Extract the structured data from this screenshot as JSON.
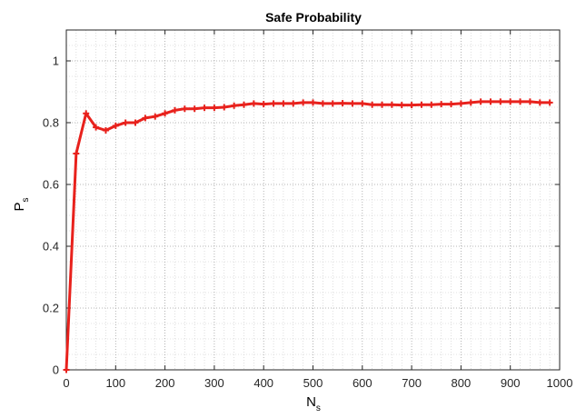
{
  "chart_data": {
    "type": "line",
    "title": "Safe Probability",
    "xlabel": {
      "main": "N",
      "sub": "s"
    },
    "ylabel": {
      "main": "P",
      "sub": "s"
    },
    "xlim": [
      0,
      1000
    ],
    "ylim": [
      0,
      1.1
    ],
    "xticks": [
      "0",
      "100",
      "200",
      "300",
      "400",
      "500",
      "600",
      "700",
      "800",
      "900",
      "1000"
    ],
    "yticks": [
      "0",
      "0.2",
      "0.4",
      "0.6",
      "0.8",
      "1"
    ],
    "grid": "major and minor, dotted",
    "series": [
      {
        "color": "#e8211c",
        "marker": "plus",
        "x": [
          0,
          20,
          40,
          60,
          80,
          100,
          120,
          140,
          160,
          180,
          200,
          220,
          240,
          260,
          280,
          300,
          320,
          340,
          360,
          380,
          400,
          420,
          440,
          460,
          480,
          500,
          520,
          540,
          560,
          580,
          600,
          620,
          640,
          660,
          680,
          700,
          720,
          740,
          760,
          780,
          800,
          820,
          840,
          860,
          880,
          900,
          920,
          940,
          960,
          980
        ],
        "y": [
          0,
          0.7,
          0.83,
          0.785,
          0.775,
          0.79,
          0.8,
          0.8,
          0.815,
          0.82,
          0.83,
          0.84,
          0.845,
          0.845,
          0.848,
          0.848,
          0.85,
          0.855,
          0.858,
          0.862,
          0.86,
          0.862,
          0.862,
          0.862,
          0.865,
          0.865,
          0.862,
          0.862,
          0.863,
          0.862,
          0.862,
          0.858,
          0.858,
          0.858,
          0.857,
          0.857,
          0.858,
          0.858,
          0.86,
          0.86,
          0.862,
          0.865,
          0.868,
          0.868,
          0.868,
          0.868,
          0.868,
          0.868,
          0.865,
          0.865
        ]
      }
    ]
  }
}
